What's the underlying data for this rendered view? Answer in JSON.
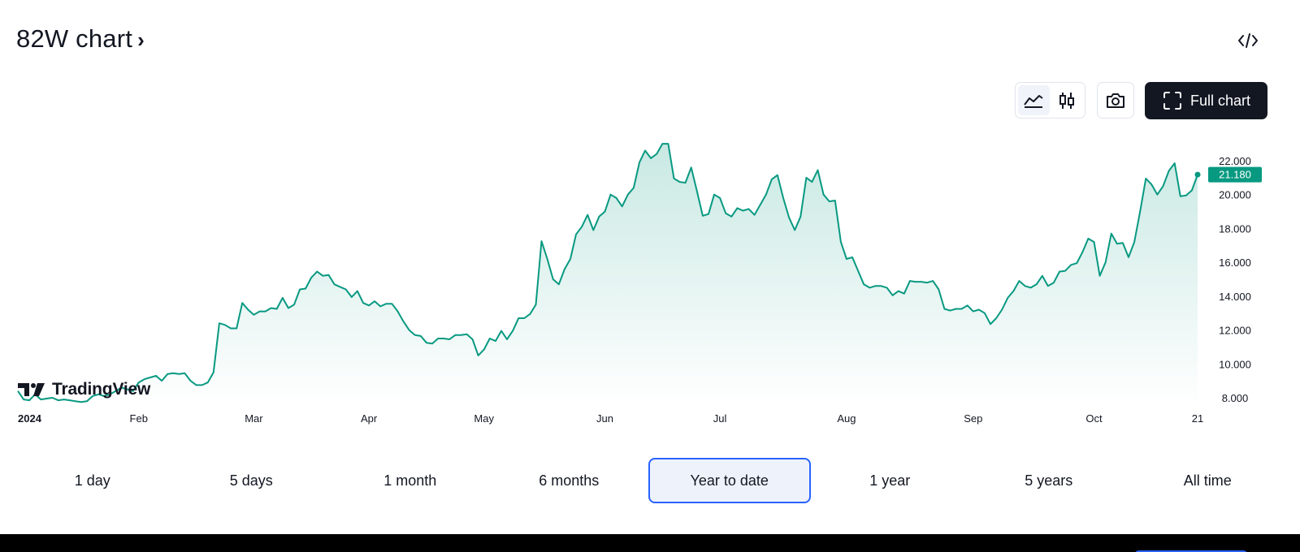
{
  "header": {
    "title": "82W chart",
    "chevron": "›",
    "embed_icon": "code-icon"
  },
  "toolbar": {
    "line_chart_icon": "area-chart-icon",
    "candles_icon": "candlestick-icon",
    "snapshot_icon": "camera-icon",
    "full_chart_icon": "fullscreen-icon",
    "full_chart_label": "Full chart"
  },
  "logo": {
    "text": "TradingView"
  },
  "ranges": [
    {
      "label": "1 day",
      "active": false
    },
    {
      "label": "5 days",
      "active": false
    },
    {
      "label": "1 month",
      "active": false
    },
    {
      "label": "6 months",
      "active": false
    },
    {
      "label": "Year to date",
      "active": true
    },
    {
      "label": "1 year",
      "active": false
    },
    {
      "label": "5 years",
      "active": false
    },
    {
      "label": "All time",
      "active": false
    }
  ],
  "colors": {
    "line": "#089981",
    "price_badge": "#089981",
    "active_border": "#2962ff"
  },
  "chart_data": {
    "type": "area",
    "series": [
      {
        "values": [
          8.4,
          7.9,
          7.85,
          8.2,
          7.9,
          7.95,
          8.0,
          7.85,
          7.9,
          7.85,
          7.8,
          7.75,
          7.8,
          8.1,
          8.2,
          8.1,
          8.2,
          8.4,
          8.6,
          8.5,
          8.4,
          8.9,
          9.1,
          9.2,
          9.3,
          9.0,
          9.4,
          9.45,
          9.4,
          9.45,
          9.0,
          8.75,
          8.75,
          8.9,
          9.5,
          12.4,
          12.3,
          12.1,
          12.1,
          13.6,
          13.2,
          12.9,
          13.1,
          13.1,
          13.3,
          13.25,
          13.9,
          13.3,
          13.5,
          14.4,
          14.45,
          15.1,
          15.45,
          15.2,
          15.25,
          14.7,
          14.55,
          14.4,
          13.95,
          14.3,
          13.6,
          13.45,
          13.7,
          13.4,
          13.55,
          13.55,
          13.1,
          12.5,
          12.0,
          11.7,
          11.65,
          11.25,
          11.2,
          11.5,
          11.5,
          11.45,
          11.7,
          11.7,
          11.75,
          11.45,
          10.5,
          10.85,
          11.5,
          11.35,
          11.95,
          11.45,
          11.95,
          12.7,
          12.7,
          12.95,
          13.5,
          17.25,
          16.2,
          15.0,
          14.7,
          15.6,
          16.2,
          17.65,
          18.1,
          18.8,
          17.9,
          18.7,
          19.0,
          20.0,
          19.8,
          19.3,
          20.0,
          20.4,
          21.9,
          22.6,
          22.15,
          22.4,
          23.0,
          23.0,
          20.95,
          20.75,
          20.7,
          21.6,
          20.2,
          18.75,
          18.85,
          20.0,
          19.8,
          18.9,
          18.7,
          19.2,
          19.05,
          19.15,
          18.8,
          19.4,
          20.0,
          20.9,
          21.15,
          19.8,
          18.65,
          17.9,
          18.7,
          21.0,
          20.75,
          21.45,
          20.0,
          19.6,
          19.65,
          17.2,
          16.2,
          16.3,
          15.5,
          14.7,
          14.5,
          14.6,
          14.6,
          14.5,
          14.05,
          14.3,
          14.15,
          14.9,
          14.85,
          14.85,
          14.8,
          14.9,
          14.4,
          13.25,
          13.15,
          13.25,
          13.25,
          13.45,
          13.1,
          13.2,
          13.0,
          12.35,
          12.7,
          13.2,
          13.9,
          14.3,
          14.9,
          14.6,
          14.5,
          14.7,
          15.2,
          14.6,
          14.8,
          15.45,
          15.5,
          15.85,
          15.95,
          16.6,
          17.4,
          17.2,
          15.2,
          16.0,
          17.7,
          17.1,
          17.15,
          16.3,
          17.2,
          19.0,
          20.95,
          20.6,
          20.0,
          20.5,
          21.4,
          21.85,
          19.9,
          19.95,
          20.25,
          21.18
        ]
      }
    ],
    "x_ticks": [
      "2024",
      "Feb",
      "Mar",
      "Apr",
      "May",
      "Jun",
      "Jul",
      "Aug",
      "Sep",
      "Oct",
      "21"
    ],
    "y_ticks": [
      "8.000",
      "10.000",
      "12.000",
      "14.000",
      "16.000",
      "18.000",
      "20.000",
      "22.000"
    ],
    "ylim": [
      8,
      22
    ],
    "last_price": "21.180",
    "grid": false
  }
}
